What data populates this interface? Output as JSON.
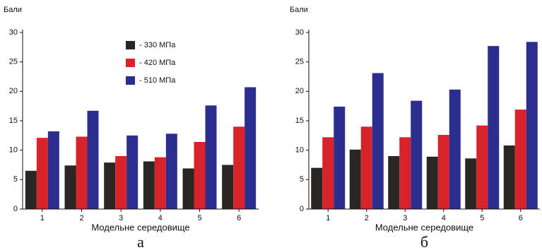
{
  "chart_data": [
    {
      "type": "bar",
      "y_label": "Бали",
      "x_label": "Модельне середовище",
      "caption": "а",
      "categories": [
        "1",
        "2",
        "3",
        "4",
        "5",
        "6"
      ],
      "series": [
        {
          "name": "- 330 МПа",
          "color": "#2a2624",
          "values": [
            6.5,
            7.4,
            7.9,
            8.1,
            6.9,
            7.5
          ]
        },
        {
          "name": "- 420 МПа",
          "color": "#d8232a",
          "values": [
            12.1,
            12.3,
            9.0,
            8.8,
            11.4,
            14.0
          ]
        },
        {
          "name": "- 510 МПа",
          "color": "#2b2d8f",
          "values": [
            13.2,
            16.7,
            12.5,
            12.8,
            17.6,
            20.7
          ]
        }
      ],
      "ylim": [
        0,
        30
      ],
      "yticks": [
        0,
        5,
        10,
        15,
        20,
        25,
        30
      ]
    },
    {
      "type": "bar",
      "y_label": "Бали",
      "x_label": "Модельне середовище",
      "caption": "б",
      "categories": [
        "1",
        "2",
        "3",
        "4",
        "5",
        "6"
      ],
      "series": [
        {
          "color": "#2a2624",
          "values": [
            7.0,
            10.1,
            9.0,
            8.9,
            8.6,
            10.8
          ]
        },
        {
          "color": "#d8232a",
          "values": [
            12.2,
            14.0,
            12.2,
            12.6,
            14.2,
            16.9
          ]
        },
        {
          "color": "#2b2d8f",
          "values": [
            17.4,
            23.1,
            18.4,
            20.3,
            27.7,
            28.4
          ]
        }
      ],
      "ylim": [
        0,
        30
      ],
      "yticks": [
        0,
        5,
        10,
        15,
        20,
        25,
        30
      ]
    }
  ]
}
